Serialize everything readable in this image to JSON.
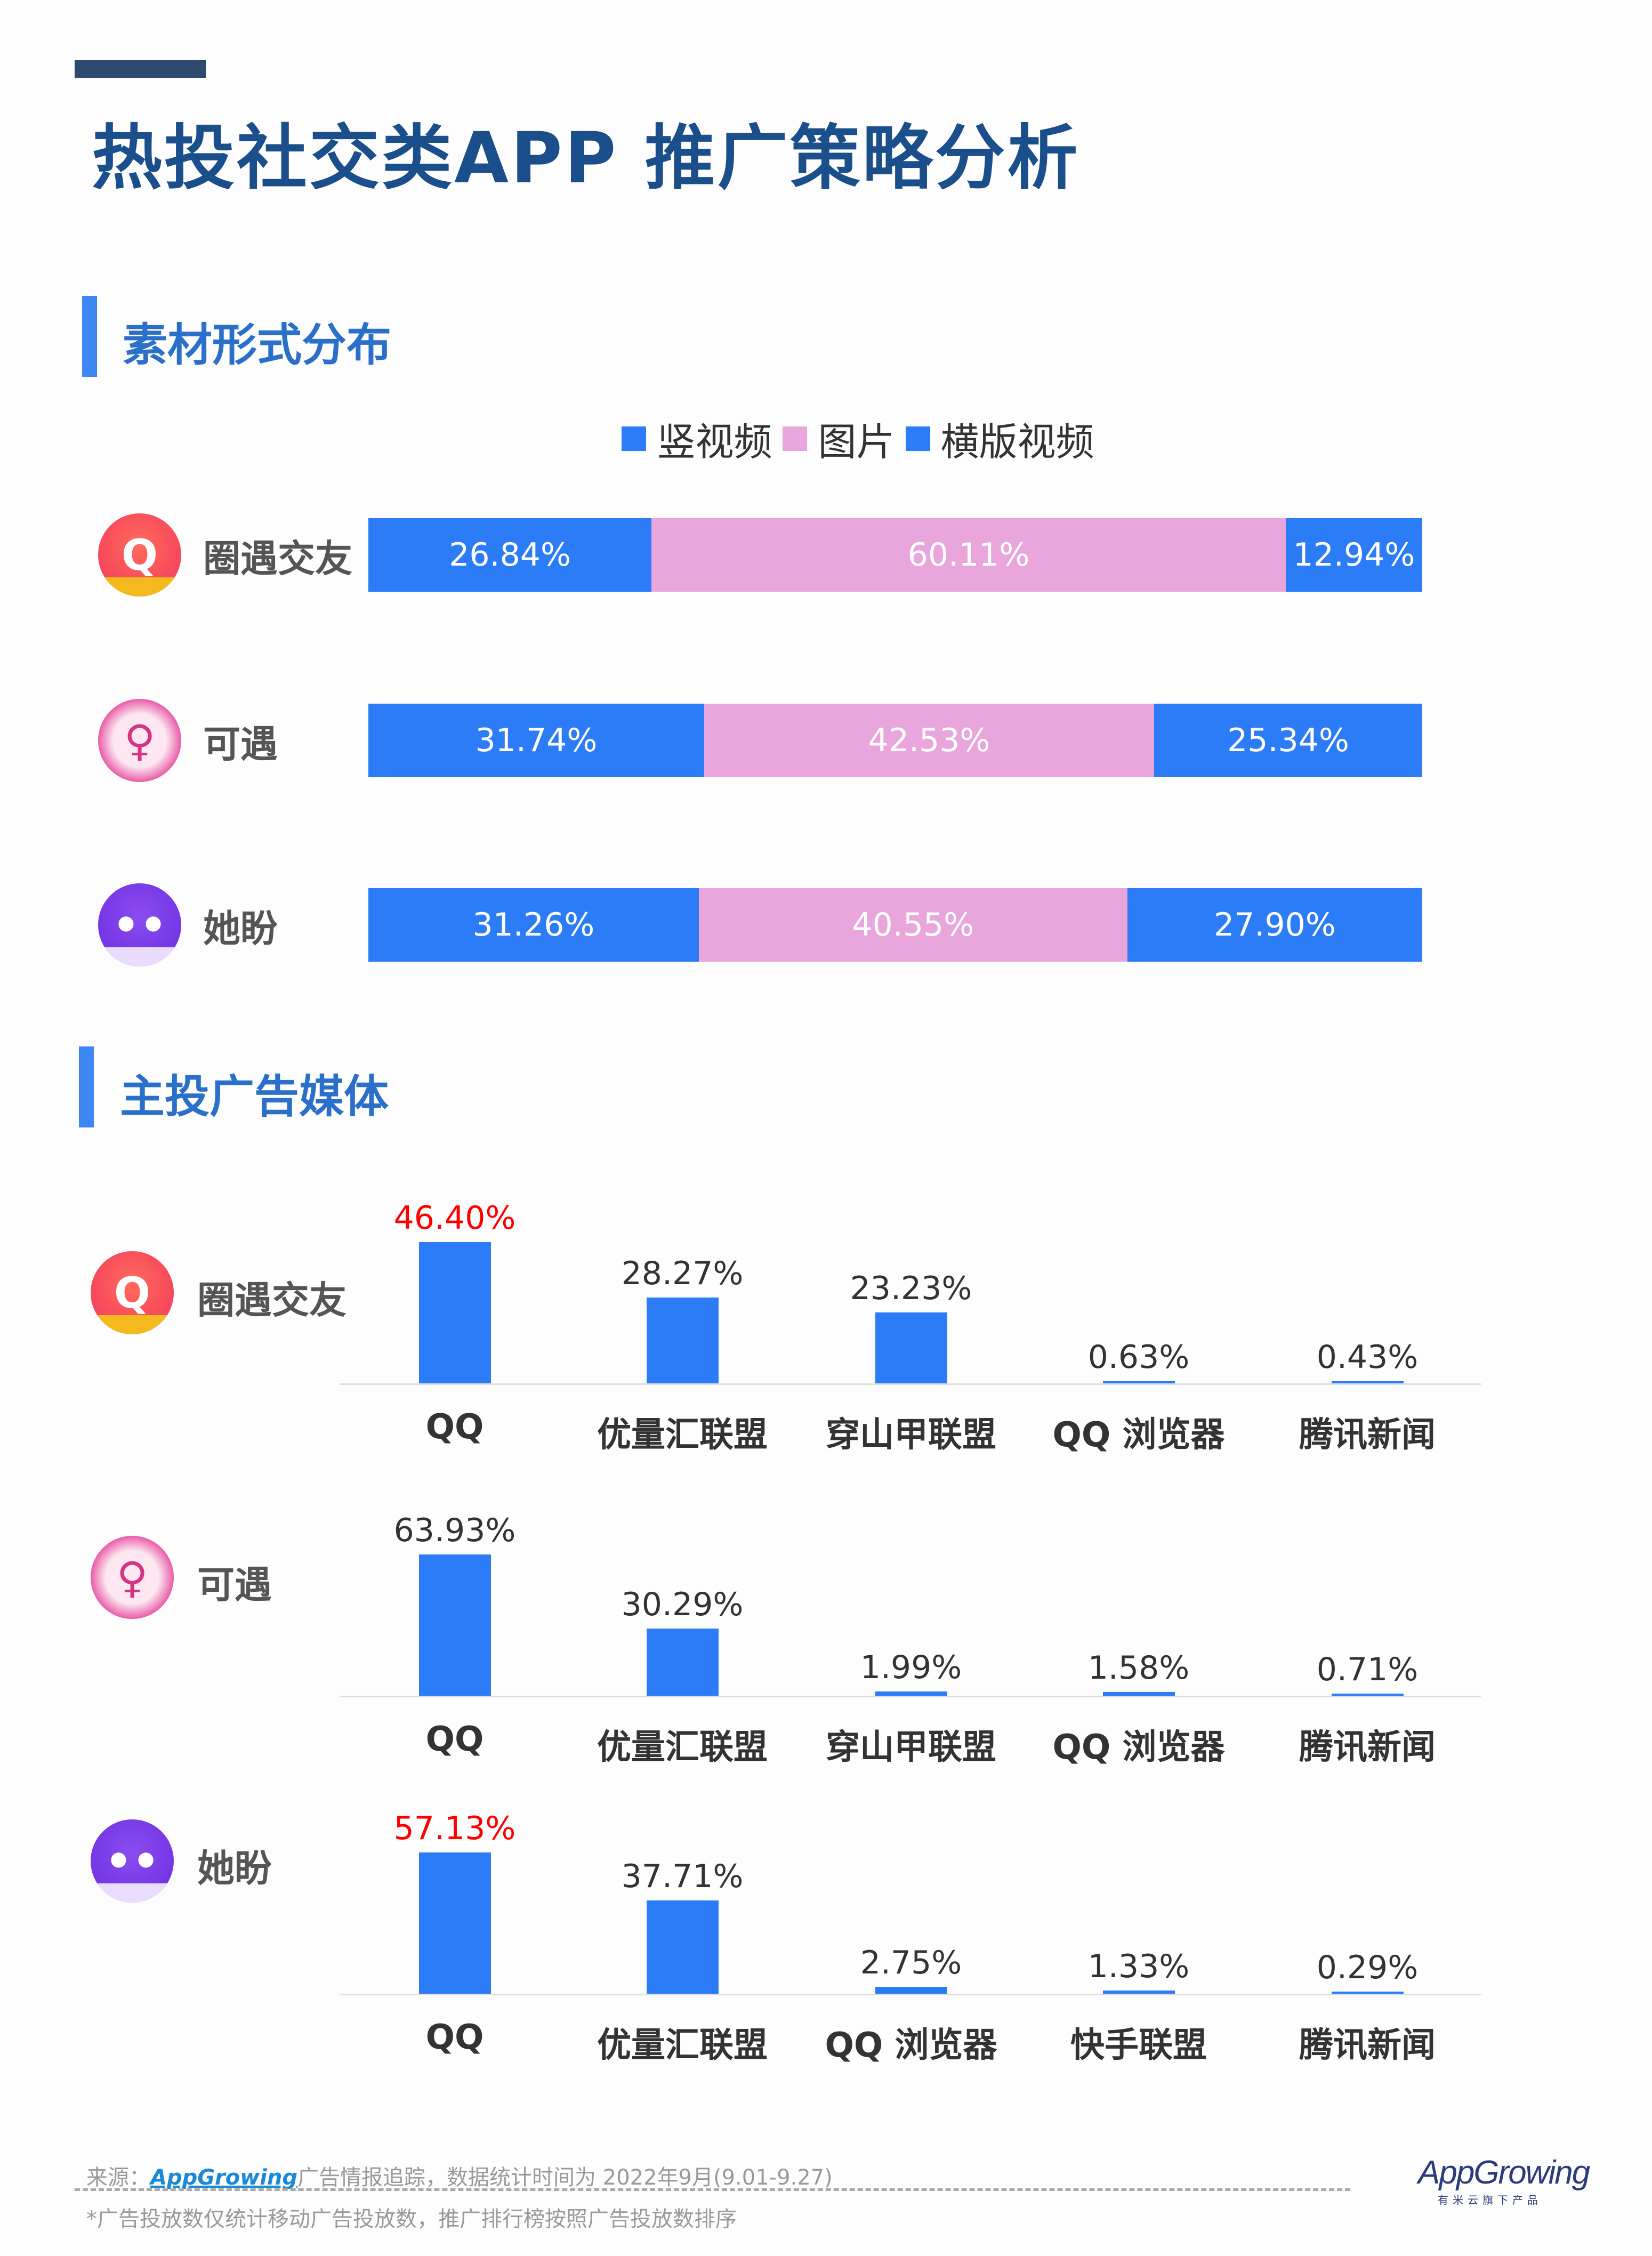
{
  "title": "热投社交类APP 推广策略分析",
  "section1": {
    "title": "素材形式分布"
  },
  "section2": {
    "title": "主投广告媒体"
  },
  "colors": {
    "vertical": "#2b7cf6",
    "image": "#e8a6dc",
    "horizontal": "#2b7cf6",
    "highlight": "#ff0000"
  },
  "chart_data": [
    {
      "type": "bar",
      "stacked": true,
      "orientation": "horizontal",
      "legend": [
        "竖视频",
        "图片",
        "横版视频"
      ],
      "legend_placement": "top",
      "categories": [
        "圈遇交友",
        "可遇",
        "她盼"
      ],
      "series": [
        {
          "name": "竖视频",
          "values": [
            26.84,
            31.74,
            31.26
          ],
          "labels": [
            "26.84%",
            "31.74%",
            "31.26%"
          ]
        },
        {
          "name": "图片",
          "values": [
            60.11,
            42.53,
            40.55
          ],
          "labels": [
            "60.11%",
            "42.53%",
            "40.55%"
          ]
        },
        {
          "name": "横版视频",
          "values": [
            12.94,
            25.34,
            27.9
          ],
          "labels": [
            "12.94%",
            "25.34%",
            "27.90%"
          ]
        }
      ]
    },
    {
      "type": "bar",
      "app": "圈遇交友",
      "categories": [
        "QQ",
        "优量汇联盟",
        "穿山甲联盟",
        "QQ 浏览器",
        "腾讯新闻"
      ],
      "values": [
        46.4,
        28.27,
        23.23,
        0.63,
        0.43
      ],
      "labels": [
        "46.40%",
        "28.27%",
        "23.23%",
        "0.63%",
        "0.43%"
      ],
      "highlight_first": true
    },
    {
      "type": "bar",
      "app": "可遇",
      "categories": [
        "QQ",
        "优量汇联盟",
        "穿山甲联盟",
        "QQ 浏览器",
        "腾讯新闻"
      ],
      "values": [
        63.93,
        30.29,
        1.99,
        1.58,
        0.71
      ],
      "labels": [
        "63.93%",
        "30.29%",
        "1.99%",
        "1.58%",
        "0.71%"
      ],
      "highlight_first": false
    },
    {
      "type": "bar",
      "app": "她盼",
      "categories": [
        "QQ",
        "优量汇联盟",
        "QQ 浏览器",
        "快手联盟",
        "腾讯新闻"
      ],
      "values": [
        57.13,
        37.71,
        2.75,
        1.33,
        0.29
      ],
      "labels": [
        "57.13%",
        "37.71%",
        "2.75%",
        "1.33%",
        "0.29%"
      ],
      "highlight_first": true
    }
  ],
  "footer": {
    "source_prefix": "来源：",
    "source_brand": "AppGrowing",
    "source_text": "广告情报追踪，数据统计时间为 2022年9月(9.01-9.27)",
    "note": "*广告投放数仅统计移动广告投放数，推广排行榜按照广告投放数排序",
    "logo_text": "AppGrowing",
    "logo_sub": "有米云旗下产品"
  }
}
